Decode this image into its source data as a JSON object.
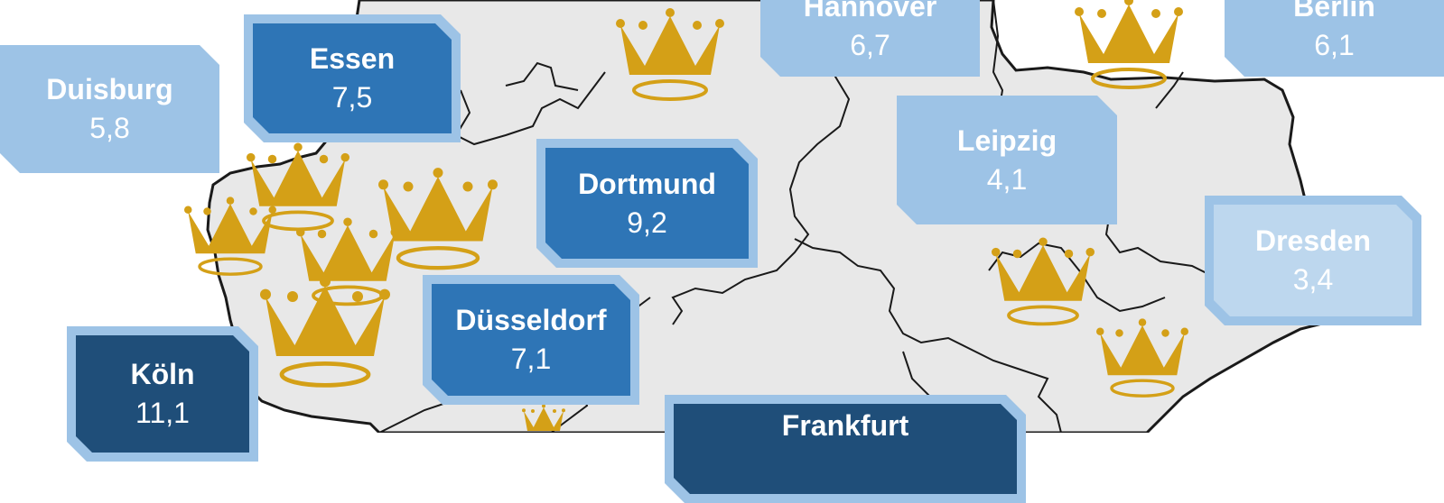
{
  "colors": {
    "land": "#e8e8e8",
    "border": "#1a1a1a",
    "crown": "#d4a017",
    "label_light": "#9dc3e6",
    "label_pale": "#bdd7ee",
    "label_mid": "#2e75b6",
    "label_dark": "#1f4e79"
  },
  "cities": [
    {
      "id": "hannover",
      "name": "Hannover",
      "value": "6,7"
    },
    {
      "id": "berlin",
      "name": "Berlin",
      "value": "6,1"
    },
    {
      "id": "essen",
      "name": "Essen",
      "value": "7,5"
    },
    {
      "id": "duisburg",
      "name": "Duisburg",
      "value": "5,8"
    },
    {
      "id": "leipzig",
      "name": "Leipzig",
      "value": "4,1"
    },
    {
      "id": "dortmund",
      "name": "Dortmund",
      "value": "9,2"
    },
    {
      "id": "dresden",
      "name": "Dresden",
      "value": "3,4"
    },
    {
      "id": "duesseldorf",
      "name": "Düsseldorf",
      "value": "7,1"
    },
    {
      "id": "koeln",
      "name": "Köln",
      "value": "11,1"
    },
    {
      "id": "frankfurt",
      "name": "Frankfurt",
      "value": ""
    }
  ]
}
